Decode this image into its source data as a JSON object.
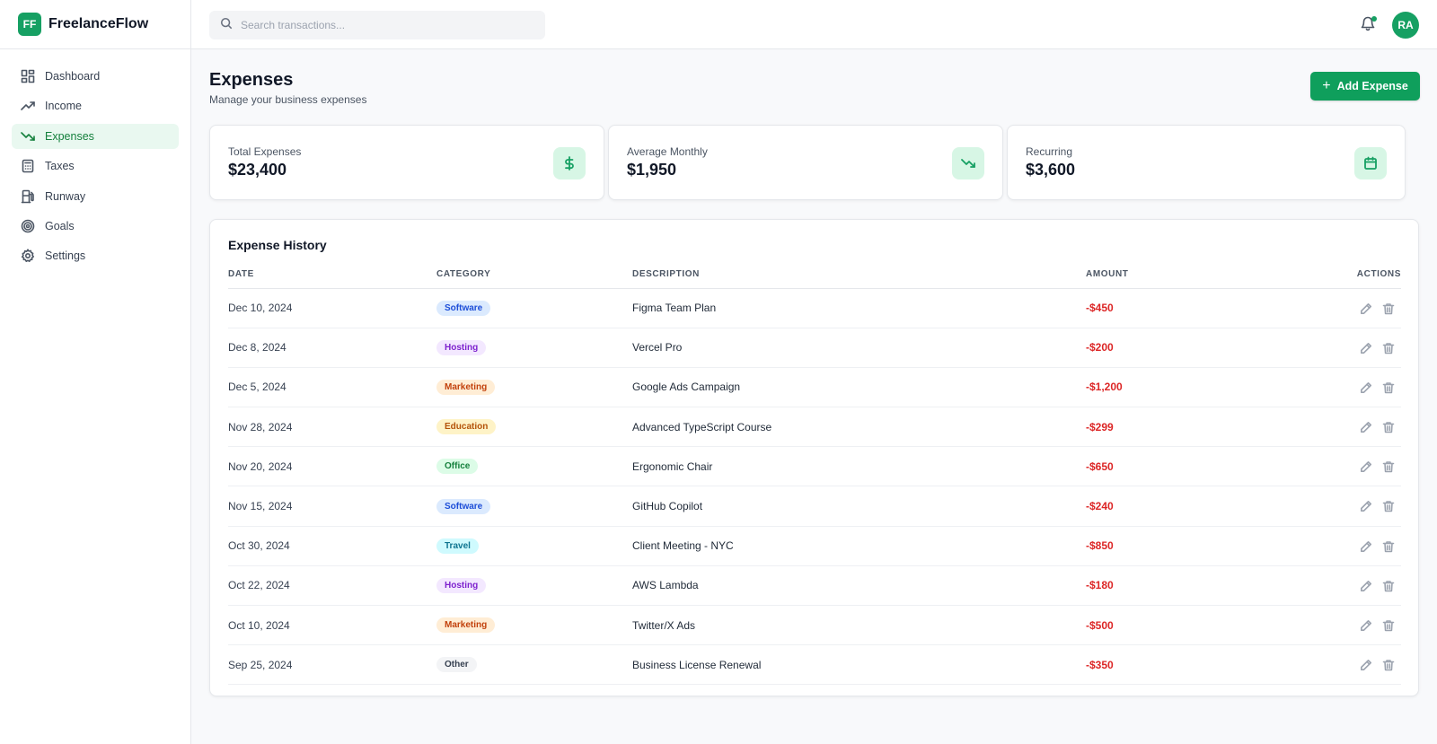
{
  "app": {
    "logo_text": "FF",
    "name": "FreelanceFlow"
  },
  "sidebar": {
    "items": [
      {
        "label": "Dashboard",
        "icon": "dashboard-icon",
        "active": false
      },
      {
        "label": "Income",
        "icon": "trending-up-icon",
        "active": false
      },
      {
        "label": "Expenses",
        "icon": "trending-down-icon",
        "active": true
      },
      {
        "label": "Taxes",
        "icon": "calculator-icon",
        "active": false
      },
      {
        "label": "Runway",
        "icon": "fuel-icon",
        "active": false
      },
      {
        "label": "Goals",
        "icon": "target-icon",
        "active": false
      },
      {
        "label": "Settings",
        "icon": "gear-icon",
        "active": false
      }
    ]
  },
  "topbar": {
    "search_placeholder": "Search transactions...",
    "notification_dot": true,
    "avatar_initials": "RA"
  },
  "page": {
    "title": "Expenses",
    "subtitle": "Manage your business expenses",
    "add_button_label": "Add Expense"
  },
  "stats": [
    {
      "label": "Total Expenses",
      "value": "$23,400",
      "icon": "dollar-icon"
    },
    {
      "label": "Average Monthly",
      "value": "$1,950",
      "icon": "trending-down-icon"
    },
    {
      "label": "Recurring",
      "value": "$3,600",
      "icon": "calendar-icon"
    }
  ],
  "history": {
    "title": "Expense History",
    "columns": {
      "date": "DATE",
      "category": "CATEGORY",
      "description": "DESCRIPTION",
      "amount": "AMOUNT",
      "actions": "ACTIONS"
    },
    "rows": [
      {
        "date": "Dec 10, 2024",
        "category": "Software",
        "description": "Figma Team Plan",
        "amount": "-$450"
      },
      {
        "date": "Dec 8, 2024",
        "category": "Hosting",
        "description": "Vercel Pro",
        "amount": "-$200"
      },
      {
        "date": "Dec 5, 2024",
        "category": "Marketing",
        "description": "Google Ads Campaign",
        "amount": "-$1,200"
      },
      {
        "date": "Nov 28, 2024",
        "category": "Education",
        "description": "Advanced TypeScript Course",
        "amount": "-$299"
      },
      {
        "date": "Nov 20, 2024",
        "category": "Office",
        "description": "Ergonomic Chair",
        "amount": "-$650"
      },
      {
        "date": "Nov 15, 2024",
        "category": "Software",
        "description": "GitHub Copilot",
        "amount": "-$240"
      },
      {
        "date": "Oct 30, 2024",
        "category": "Travel",
        "description": "Client Meeting - NYC",
        "amount": "-$850"
      },
      {
        "date": "Oct 22, 2024",
        "category": "Hosting",
        "description": "AWS Lambda",
        "amount": "-$180"
      },
      {
        "date": "Oct 10, 2024",
        "category": "Marketing",
        "description": "Twitter/X Ads",
        "amount": "-$500"
      },
      {
        "date": "Sep 25, 2024",
        "category": "Other",
        "description": "Business License Renewal",
        "amount": "-$350"
      }
    ]
  },
  "category_colors": {
    "Software": {
      "bg": "#dbeafe",
      "fg": "#1d4ed8"
    },
    "Hosting": {
      "bg": "#f3e8ff",
      "fg": "#7e22ce"
    },
    "Marketing": {
      "bg": "#ffedd5",
      "fg": "#c2410c"
    },
    "Education": {
      "bg": "#fef3c7",
      "fg": "#b45309"
    },
    "Office": {
      "bg": "#dcfce7",
      "fg": "#15803d"
    },
    "Travel": {
      "bg": "#cffafe",
      "fg": "#0e7490"
    },
    "Other": {
      "bg": "#f3f4f6",
      "fg": "#374151"
    }
  },
  "colors": {
    "accent": "#16a063",
    "negative": "#dc2626"
  }
}
